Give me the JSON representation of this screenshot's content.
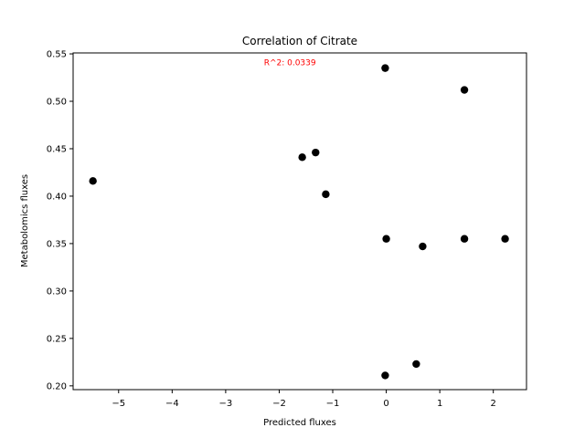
{
  "chart_data": {
    "type": "scatter",
    "title": "Correlation of Citrate",
    "xlabel": "Predicted fluxes",
    "ylabel": "Metabolomics fluxes",
    "xlim": [
      -5.85,
      2.62
    ],
    "ylim": [
      0.196,
      0.551
    ],
    "xticks": [
      -5,
      -4,
      -3,
      -2,
      -1,
      0,
      1,
      2
    ],
    "xtick_labels": [
      "−5",
      "−4",
      "−3",
      "−2",
      "−1",
      "0",
      "1",
      "2"
    ],
    "yticks": [
      0.2,
      0.25,
      0.3,
      0.35,
      0.4,
      0.45,
      0.5,
      0.55
    ],
    "ytick_labels": [
      "0.20",
      "0.25",
      "0.30",
      "0.35",
      "0.40",
      "0.45",
      "0.50",
      "0.55"
    ],
    "grid": false,
    "marker_color": "#000000",
    "annotation": {
      "text": "R^2: 0.0339",
      "color": "#ff0000",
      "x": -1.8,
      "y": 0.541
    },
    "points": [
      {
        "x": -5.48,
        "y": 0.416
      },
      {
        "x": -1.57,
        "y": 0.441
      },
      {
        "x": -1.32,
        "y": 0.446
      },
      {
        "x": -1.13,
        "y": 0.402
      },
      {
        "x": -0.02,
        "y": 0.535
      },
      {
        "x": 0.0,
        "y": 0.355
      },
      {
        "x": -0.02,
        "y": 0.211
      },
      {
        "x": 0.68,
        "y": 0.347
      },
      {
        "x": 0.56,
        "y": 0.223
      },
      {
        "x": 1.46,
        "y": 0.512
      },
      {
        "x": 1.46,
        "y": 0.355
      },
      {
        "x": 2.22,
        "y": 0.355
      }
    ]
  }
}
